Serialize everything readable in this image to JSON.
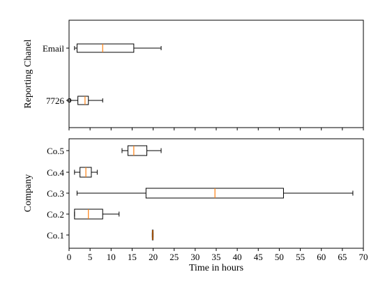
{
  "chart_data": [
    {
      "type": "boxplot",
      "orientation": "horizontal",
      "ylabel": "Reporting Chanel",
      "xlim": [
        0,
        70
      ],
      "categories": [
        "Email",
        "7726"
      ],
      "boxes": [
        {
          "name": "Email",
          "whisker_low": 1.3,
          "q1": 1.9,
          "median": 8.0,
          "q3": 15.4,
          "whisker_high": 21.9
        },
        {
          "name": "7726",
          "whisker_low": 0.3,
          "q1": 2.1,
          "median": 3.8,
          "q3": 4.6,
          "whisker_high": 8.0
        }
      ],
      "outliers": [
        {
          "category": "7726",
          "value": 0.05
        }
      ]
    },
    {
      "type": "boxplot",
      "orientation": "horizontal",
      "ylabel": "Company",
      "xlabel": "Time in hours",
      "xlim": [
        0,
        70
      ],
      "xticks": [
        0,
        5,
        10,
        15,
        20,
        25,
        30,
        35,
        40,
        45,
        50,
        55,
        60,
        65,
        70
      ],
      "categories": [
        "Co.5",
        "Co.4",
        "Co.3",
        "Co.2",
        "Co.1"
      ],
      "boxes": [
        {
          "name": "Co.5",
          "whisker_low": 12.6,
          "q1": 14.0,
          "median": 15.4,
          "q3": 18.5,
          "whisker_high": 21.9
        },
        {
          "name": "Co.4",
          "whisker_low": 1.3,
          "q1": 2.6,
          "median": 4.0,
          "q3": 5.3,
          "whisker_high": 6.7
        },
        {
          "name": "Co.3",
          "whisker_low": 1.9,
          "q1": 18.3,
          "median": 34.7,
          "q3": 51.0,
          "whisker_high": 67.5
        },
        {
          "name": "Co.2",
          "whisker_low": 1.3,
          "q1": 1.3,
          "median": 4.6,
          "q3": 8.0,
          "whisker_high": 11.9
        },
        {
          "name": "Co.1",
          "whisker_low": 19.8,
          "q1": 19.8,
          "median": 19.9,
          "q3": 20.0,
          "whisker_high": 20.0
        }
      ]
    }
  ],
  "colors": {
    "median": "#ff7f0e",
    "box": "#000000",
    "background": "#ffffff"
  }
}
